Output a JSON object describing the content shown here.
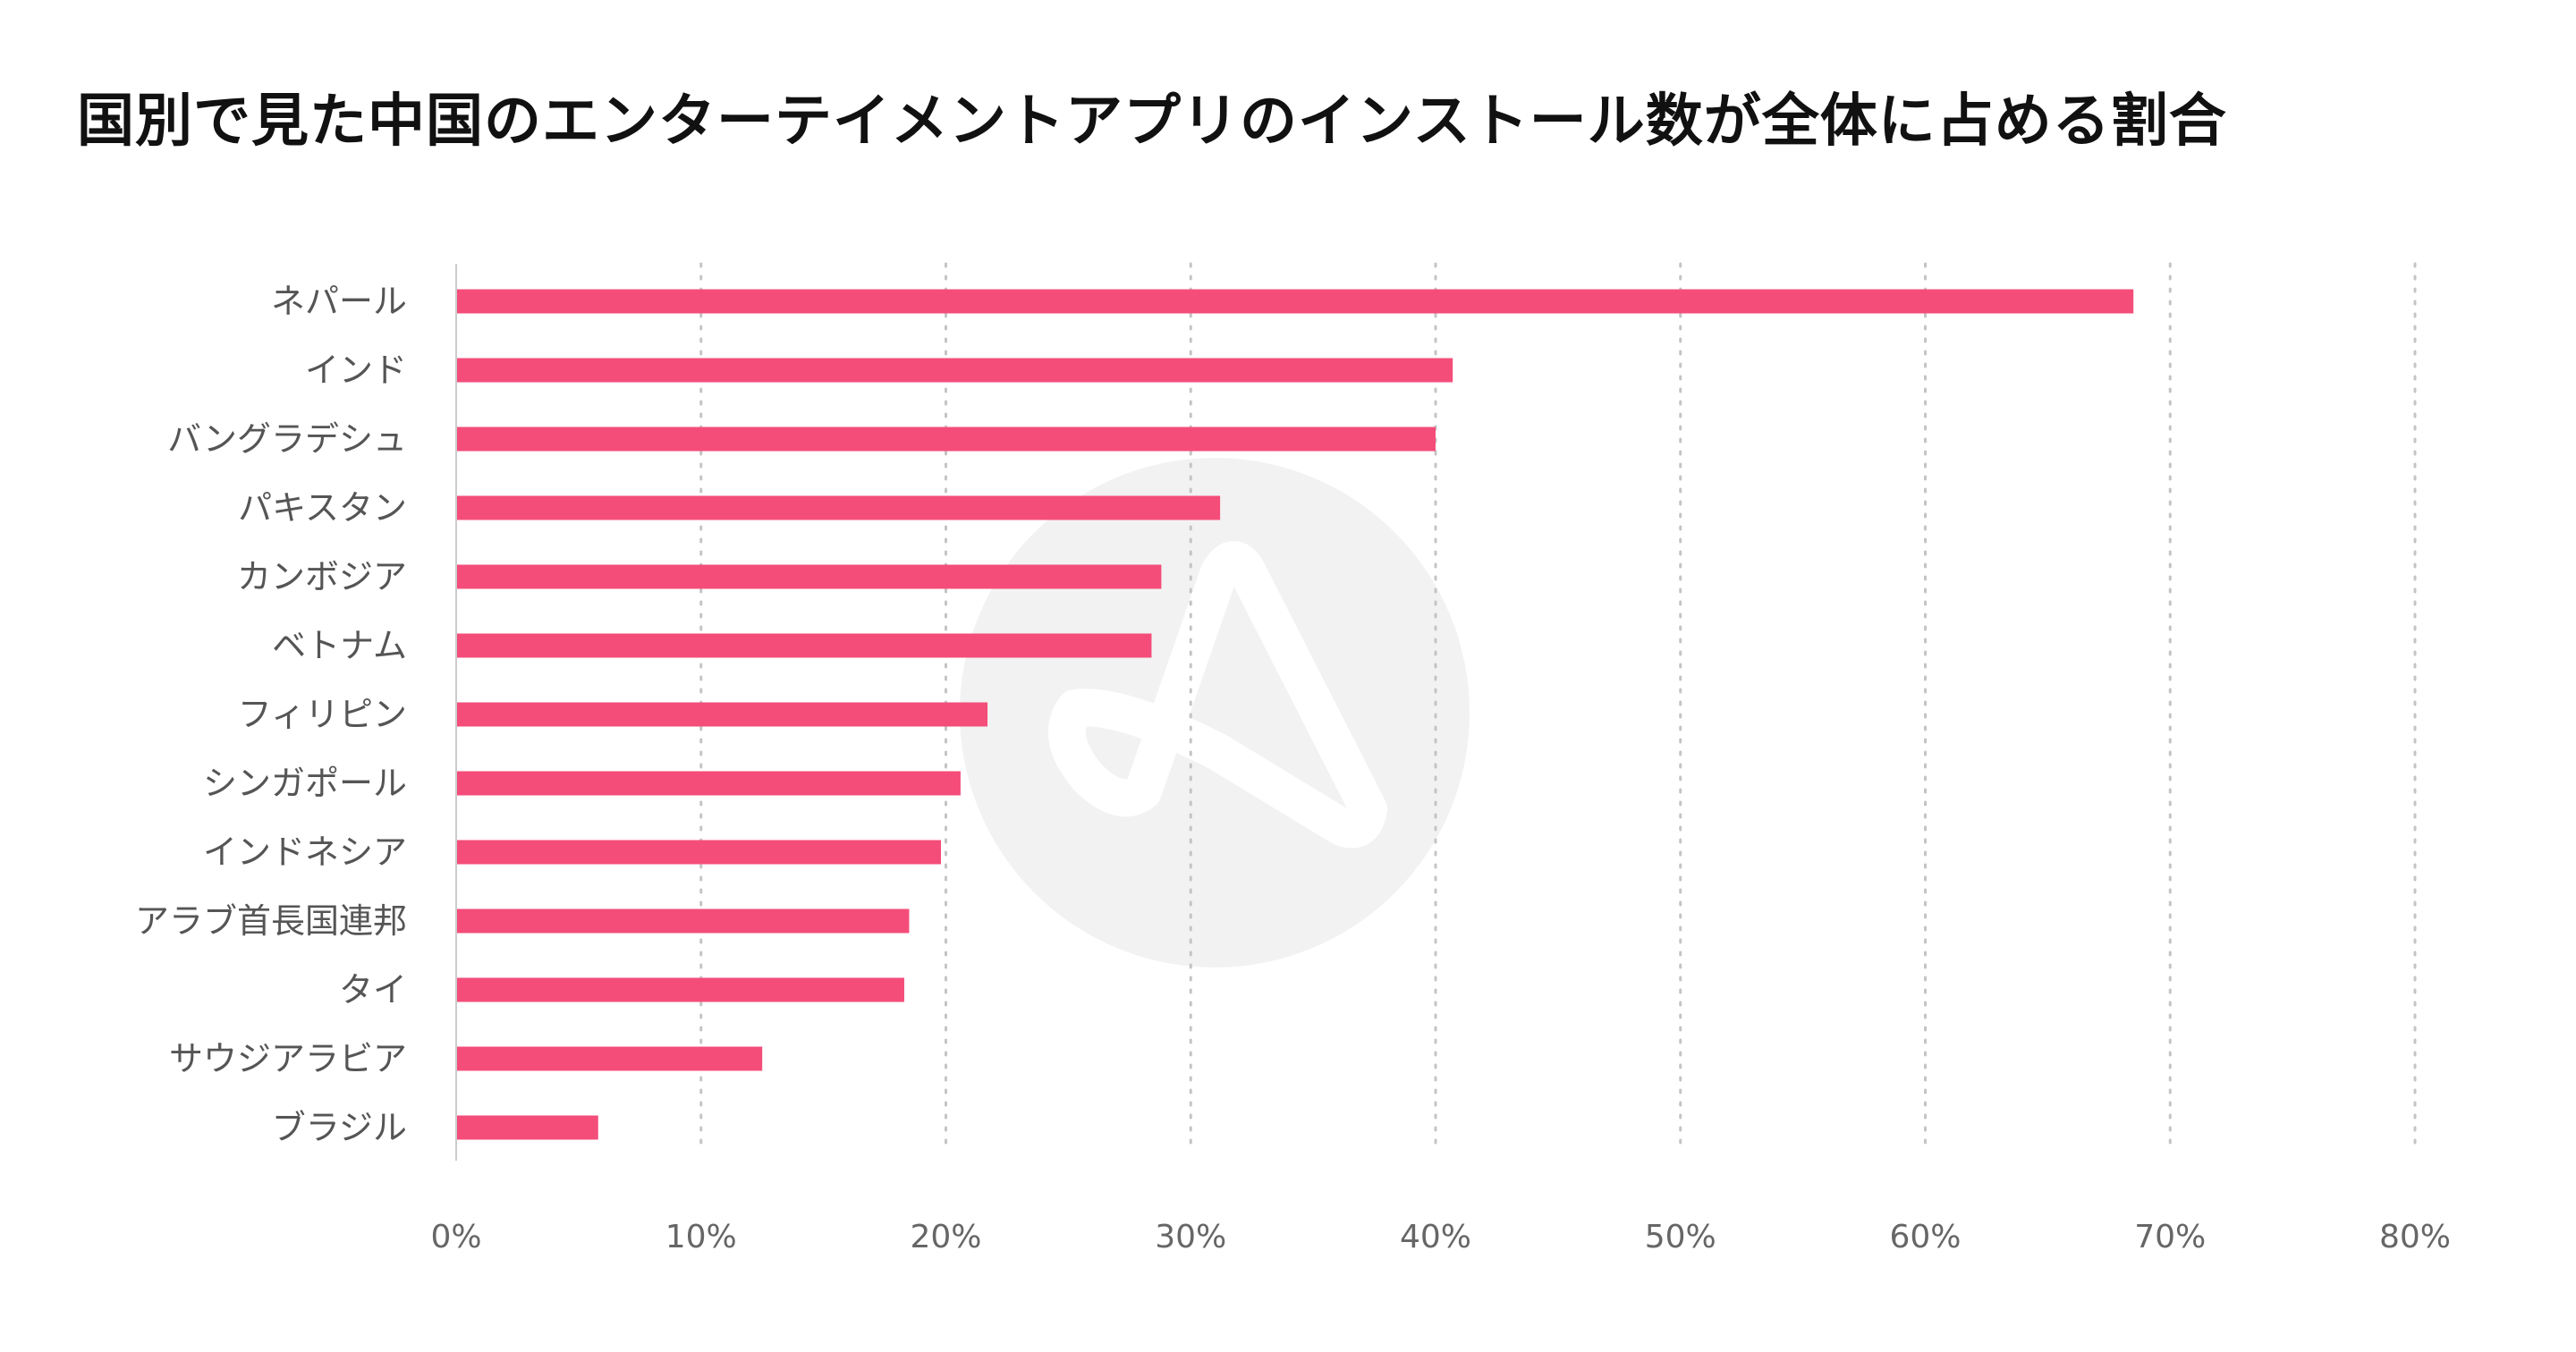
{
  "colors": {
    "bar": "#F44D7A",
    "grid": "#C4C4C4",
    "axis": "#CCCCCC",
    "watermark": "#F2F2F2",
    "title": "#111111",
    "label": "#555555"
  },
  "chart_data": {
    "type": "bar",
    "orientation": "horizontal",
    "title": "国別で見た中国のエンターテイメントアプリのインストール数が全体に占める割合",
    "xlabel": "",
    "ylabel": "",
    "xlim": [
      0,
      80
    ],
    "grid": "vertical-dotted",
    "legend": "none",
    "categories": [
      "ネパール",
      "インド",
      "バングラデシュ",
      "パキスタン",
      "カンボジア",
      "ベトナム",
      "フィリピン",
      "シンガポール",
      "インドネシア",
      "アラブ首長国連邦",
      "タイ",
      "サウジアラビア",
      "ブラジル"
    ],
    "values": [
      68.5,
      40.7,
      40.0,
      31.2,
      28.8,
      28.4,
      21.7,
      20.6,
      19.8,
      18.5,
      18.3,
      12.5,
      5.8
    ],
    "ticks": [
      0,
      10,
      20,
      30,
      40,
      50,
      60,
      70,
      80
    ],
    "tick_labels": [
      "0%",
      "10%",
      "20%",
      "30%",
      "40%",
      "50%",
      "60%",
      "70%",
      "80%"
    ]
  }
}
